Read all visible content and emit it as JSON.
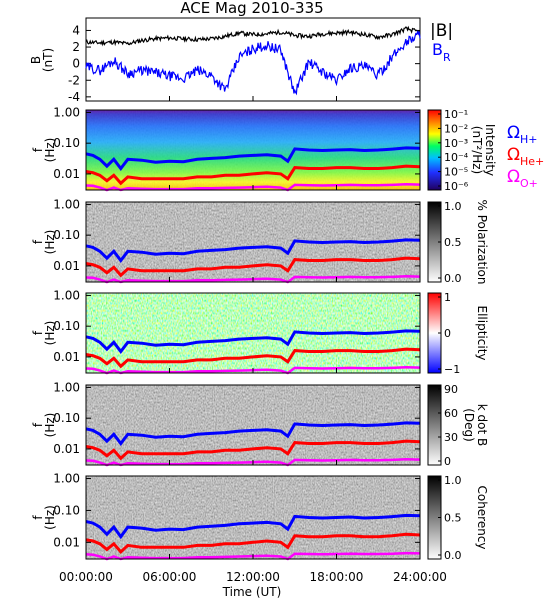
{
  "title": "ACE Mag 2010-335",
  "colors": {
    "h_plus": "#0000ff",
    "he_plus": "#ff0000",
    "o_plus": "#ff00ff",
    "br": "#0000ff",
    "b": "#000000"
  },
  "x_axis": {
    "label": "Time (UT)",
    "ticks": [
      "00:00:00",
      "06:00:00",
      "12:00:00",
      "18:00:00",
      "24:00:00"
    ],
    "range_hours": [
      0,
      24
    ]
  },
  "chart_data": [
    {
      "type": "line",
      "ylabel_top": "B",
      "ylabel_unit": "(nT)",
      "ylim": [
        -4.5,
        5.5
      ],
      "yticks": [
        "4",
        "2",
        "0",
        "-2",
        "-4"
      ],
      "legend": [
        {
          "name": "|B|",
          "sub": ""
        },
        {
          "name": "B",
          "sub": "R"
        }
      ],
      "series": [
        {
          "name": "|B|",
          "x": [
            0,
            1,
            2,
            3,
            4,
            5,
            6,
            7,
            8,
            9,
            10,
            11,
            12,
            13,
            14,
            15,
            16,
            17,
            18,
            19,
            20,
            21,
            22,
            23,
            24
          ],
          "values": [
            2.6,
            2.5,
            2.6,
            2.4,
            2.8,
            3.0,
            3.1,
            3.0,
            2.9,
            3.0,
            3.3,
            3.7,
            3.5,
            3.6,
            3.8,
            3.4,
            3.3,
            3.6,
            3.7,
            3.8,
            3.5,
            3.2,
            3.5,
            4.2,
            3.8
          ]
        },
        {
          "name": "B R",
          "x": [
            0,
            1,
            2,
            3,
            4,
            5,
            6,
            7,
            8,
            9,
            10,
            11,
            12,
            13,
            14,
            15,
            16,
            17,
            18,
            19,
            20,
            21,
            22,
            23,
            24
          ],
          "values": [
            -0.4,
            -0.8,
            0.4,
            -1.2,
            -0.8,
            -1.1,
            -1.5,
            -1.8,
            -0.8,
            -1.4,
            -3.2,
            0.8,
            1.8,
            2.2,
            1.6,
            -3.6,
            0.2,
            -1.0,
            -2.0,
            -0.5,
            -0.3,
            -1.4,
            0.8,
            2.6,
            3.6
          ]
        }
      ]
    },
    {
      "type": "heatmap",
      "name": "intensity",
      "ylabel": "f",
      "yunit": "(Hz)",
      "yticks": [
        "1.00",
        "0.10",
        "0.01"
      ],
      "ylim_hz": [
        0.003,
        1.2
      ],
      "log_y": true,
      "colorbar": {
        "label": "Intensity",
        "unit": "(nT²/Hz)",
        "ticks": [
          "10⁻¹",
          "10⁻²",
          "10⁻³",
          "10⁻⁴",
          "10⁻⁵",
          "10⁻⁶"
        ],
        "scale": "rainbow"
      },
      "legend": [
        {
          "name": "Ω",
          "sub": "H+"
        },
        {
          "name": "Ω",
          "sub": "He+"
        },
        {
          "name": "Ω",
          "sub": "O+"
        }
      ]
    },
    {
      "type": "heatmap",
      "name": "polarization",
      "ylabel": "f",
      "yunit": "(Hz)",
      "yticks": [
        "1.00",
        "0.10",
        "0.01"
      ],
      "colorbar": {
        "label": "% Polarization",
        "ticks": [
          "1.0",
          "0.5",
          "0.0"
        ],
        "scale": "gray"
      }
    },
    {
      "type": "heatmap",
      "name": "ellipticity",
      "ylabel": "f",
      "yunit": "(Hz)",
      "yticks": [
        "1.00",
        "0.10",
        "0.01"
      ],
      "colorbar": {
        "label": "Ellipticity",
        "ticks": [
          "1",
          "0",
          "−1"
        ],
        "scale": "red-blue"
      }
    },
    {
      "type": "heatmap",
      "name": "k dot B",
      "ylabel": "f",
      "yunit": "(Hz)",
      "yticks": [
        "1.00",
        "0.10",
        "0.01"
      ],
      "colorbar": {
        "label": "k dot B",
        "unit": "(Deg)",
        "ticks": [
          "90",
          "60",
          "30",
          "0"
        ],
        "scale": "gray"
      }
    },
    {
      "type": "heatmap",
      "name": "coherency",
      "ylabel": "f",
      "yunit": "(Hz)",
      "yticks": [
        "1.00",
        "0.10",
        "0.01"
      ],
      "colorbar": {
        "label": "Coherency",
        "ticks": [
          "1.0",
          "0.5",
          "0.0"
        ],
        "scale": "gray"
      }
    }
  ],
  "gyro_lines": {
    "x": [
      0,
      0.5,
      1,
      1.5,
      2,
      2.5,
      3,
      4,
      5,
      6,
      7,
      8,
      9,
      10,
      11,
      12,
      13,
      14,
      14.5,
      15,
      16,
      17,
      18,
      19,
      20,
      21,
      22,
      23,
      24
    ],
    "h_plus_hz": [
      0.045,
      0.04,
      0.03,
      0.018,
      0.03,
      0.015,
      0.03,
      0.028,
      0.024,
      0.026,
      0.025,
      0.03,
      0.032,
      0.034,
      0.038,
      0.04,
      0.042,
      0.038,
      0.026,
      0.065,
      0.06,
      0.058,
      0.06,
      0.062,
      0.058,
      0.06,
      0.064,
      0.07,
      0.068
    ],
    "he_plus_hz": [
      0.012,
      0.011,
      0.009,
      0.006,
      0.009,
      0.005,
      0.008,
      0.007,
      0.007,
      0.007,
      0.007,
      0.008,
      0.008,
      0.009,
      0.009,
      0.01,
      0.011,
      0.01,
      0.007,
      0.016,
      0.015,
      0.015,
      0.016,
      0.016,
      0.015,
      0.015,
      0.016,
      0.018,
      0.017
    ],
    "o_plus_hz": [
      0.0042,
      0.0041,
      0.0036,
      0.003,
      0.0036,
      0.003,
      0.0034,
      0.0033,
      0.0032,
      0.0032,
      0.0032,
      0.0034,
      0.0034,
      0.0035,
      0.0036,
      0.0037,
      0.0038,
      0.0036,
      0.003,
      0.0044,
      0.0043,
      0.0042,
      0.0043,
      0.0044,
      0.0043,
      0.0043,
      0.0044,
      0.0046,
      0.0045
    ]
  }
}
